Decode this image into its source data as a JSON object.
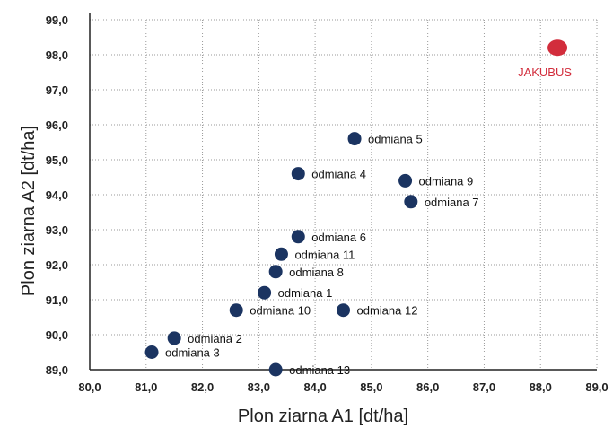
{
  "chart_data": {
    "type": "scatter",
    "xlabel": "Plon ziarna A1 [dt/ha]",
    "ylabel": "Plon ziarna A2 [dt/ha]",
    "xlim": [
      80.0,
      89.0
    ],
    "ylim": [
      89.0,
      99.0
    ],
    "x_ticks": [
      "80,0",
      "81,0",
      "82,0",
      "83,0",
      "84,0",
      "85,0",
      "86,0",
      "87,0",
      "88,0",
      "89,0"
    ],
    "y_ticks": [
      "89,0",
      "90,0",
      "91,0",
      "92,0",
      "93,0",
      "94,0",
      "95,0",
      "96,0",
      "97,0",
      "98,0",
      "99,0"
    ],
    "grid": true,
    "colors": {
      "point": "#1b3461",
      "highlight": "#d22d3c"
    },
    "points": [
      {
        "label": "JAKUBUS",
        "x": 88.3,
        "y": 98.2,
        "highlight": true
      },
      {
        "label": "odmiana 5",
        "x": 84.7,
        "y": 95.6
      },
      {
        "label": "odmiana 4",
        "x": 83.7,
        "y": 94.6
      },
      {
        "label": "odmiana 9",
        "x": 85.6,
        "y": 94.4
      },
      {
        "label": "odmiana 7",
        "x": 85.7,
        "y": 93.8
      },
      {
        "label": "odmiana 6",
        "x": 83.7,
        "y": 92.8
      },
      {
        "label": "odmiana 11",
        "x": 83.4,
        "y": 92.3
      },
      {
        "label": "odmiana 8",
        "x": 83.3,
        "y": 91.8
      },
      {
        "label": "odmiana 1",
        "x": 83.1,
        "y": 91.2
      },
      {
        "label": "odmiana 10",
        "x": 82.6,
        "y": 90.7
      },
      {
        "label": "odmiana 12",
        "x": 84.5,
        "y": 90.7
      },
      {
        "label": "odmiana 2",
        "x": 81.5,
        "y": 89.9
      },
      {
        "label": "odmiana 3",
        "x": 81.1,
        "y": 89.5
      },
      {
        "label": "odmiana 13",
        "x": 83.3,
        "y": 89.0
      }
    ]
  }
}
